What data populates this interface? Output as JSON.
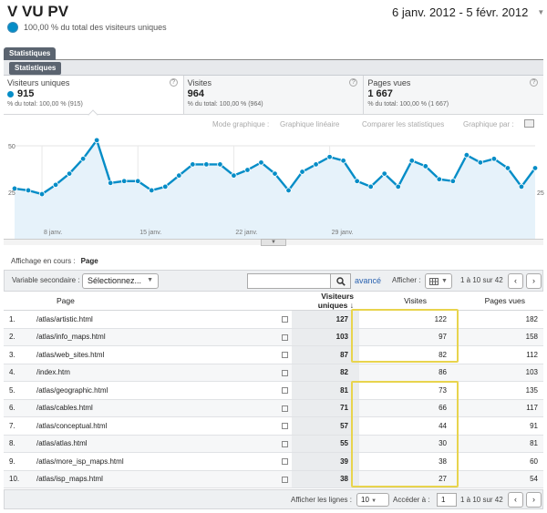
{
  "header": {
    "title": "V VU PV",
    "segment_text": "100,00 % du total des visiteurs uniques",
    "date_range": "6 janv. 2012 - 5 févr. 2012"
  },
  "tabs": {
    "main": "Statistiques",
    "sub": "Statistiques"
  },
  "scorecards": [
    {
      "label": "Visiteurs uniques",
      "value": "915",
      "sub": "% du total: 100,00 % (915)"
    },
    {
      "label": "Visites",
      "value": "964",
      "sub": "% du total: 100,00 % (964)"
    },
    {
      "label": "Pages vues",
      "value": "1 667",
      "sub": "% du total: 100,00 % (1 667)"
    }
  ],
  "graph_options": {
    "mode": "Mode graphique :",
    "linear": "Graphique linéaire",
    "compare": "Comparer les statistiques",
    "by": "Graphique par :"
  },
  "chart_data": {
    "type": "line",
    "y_ticks": [
      "50",
      "25"
    ],
    "ylim": [
      0,
      50
    ],
    "x_labels": [
      "8 janv.",
      "15 janv.",
      "22 janv.",
      "29 janv."
    ],
    "series": [
      {
        "values": [
          27,
          26,
          24,
          29,
          35,
          43,
          53,
          30,
          31,
          31,
          26,
          28,
          34,
          40,
          40,
          40,
          34,
          37,
          41,
          35,
          26,
          36,
          40,
          44,
          42,
          31,
          28,
          35,
          28,
          42,
          39,
          32,
          31,
          45,
          41,
          43,
          38,
          28,
          38
        ]
      }
    ],
    "colors": {
      "line": "#058dc7",
      "fill": "#e6f2fa"
    }
  },
  "table_controls": {
    "affichage_label": "Affichage en cours :",
    "affichage_value": "Page",
    "secondary_label": "Variable secondaire :",
    "secondary_value": "Sélectionnez...",
    "search_placeholder": "",
    "advanced": "avancé",
    "show_label": "Afficher :",
    "range": "1 à 10 sur 42",
    "prev": "‹",
    "next": "›"
  },
  "table": {
    "columns": [
      "Page",
      "Visiteurs uniques",
      "Visites",
      "Pages vues"
    ],
    "rows": [
      {
        "n": "1.",
        "page": "/atlas/artistic.html",
        "vu": "127",
        "visites": "122",
        "pv": "182"
      },
      {
        "n": "2.",
        "page": "/atlas/info_maps.html",
        "vu": "103",
        "visites": "97",
        "pv": "158"
      },
      {
        "n": "3.",
        "page": "/atlas/web_sites.html",
        "vu": "87",
        "visites": "82",
        "pv": "112"
      },
      {
        "n": "4.",
        "page": "/index.htm",
        "vu": "82",
        "visites": "86",
        "pv": "103"
      },
      {
        "n": "5.",
        "page": "/atlas/geographic.html",
        "vu": "81",
        "visites": "73",
        "pv": "135"
      },
      {
        "n": "6.",
        "page": "/atlas/cables.html",
        "vu": "71",
        "visites": "66",
        "pv": "117"
      },
      {
        "n": "7.",
        "page": "/atlas/conceptual.html",
        "vu": "57",
        "visites": "44",
        "pv": "91"
      },
      {
        "n": "8.",
        "page": "/atlas/atlas.html",
        "vu": "55",
        "visites": "30",
        "pv": "81"
      },
      {
        "n": "9.",
        "page": "/atlas/more_isp_maps.html",
        "vu": "39",
        "visites": "38",
        "pv": "60"
      },
      {
        "n": "10.",
        "page": "/atlas/isp_maps.html",
        "vu": "38",
        "visites": "27",
        "pv": "54"
      }
    ]
  },
  "footer": {
    "rows_label": "Afficher les lignes :",
    "rows_value": "10",
    "goto_label": "Accéder à :",
    "goto_value": "1",
    "range": "1 à 10 sur 42",
    "prev": "‹",
    "next": "›"
  },
  "colors": {
    "accent": "#058dc7",
    "highlight": "#e8d44d",
    "tab": "#5b6470",
    "link": "#2a62b0"
  }
}
